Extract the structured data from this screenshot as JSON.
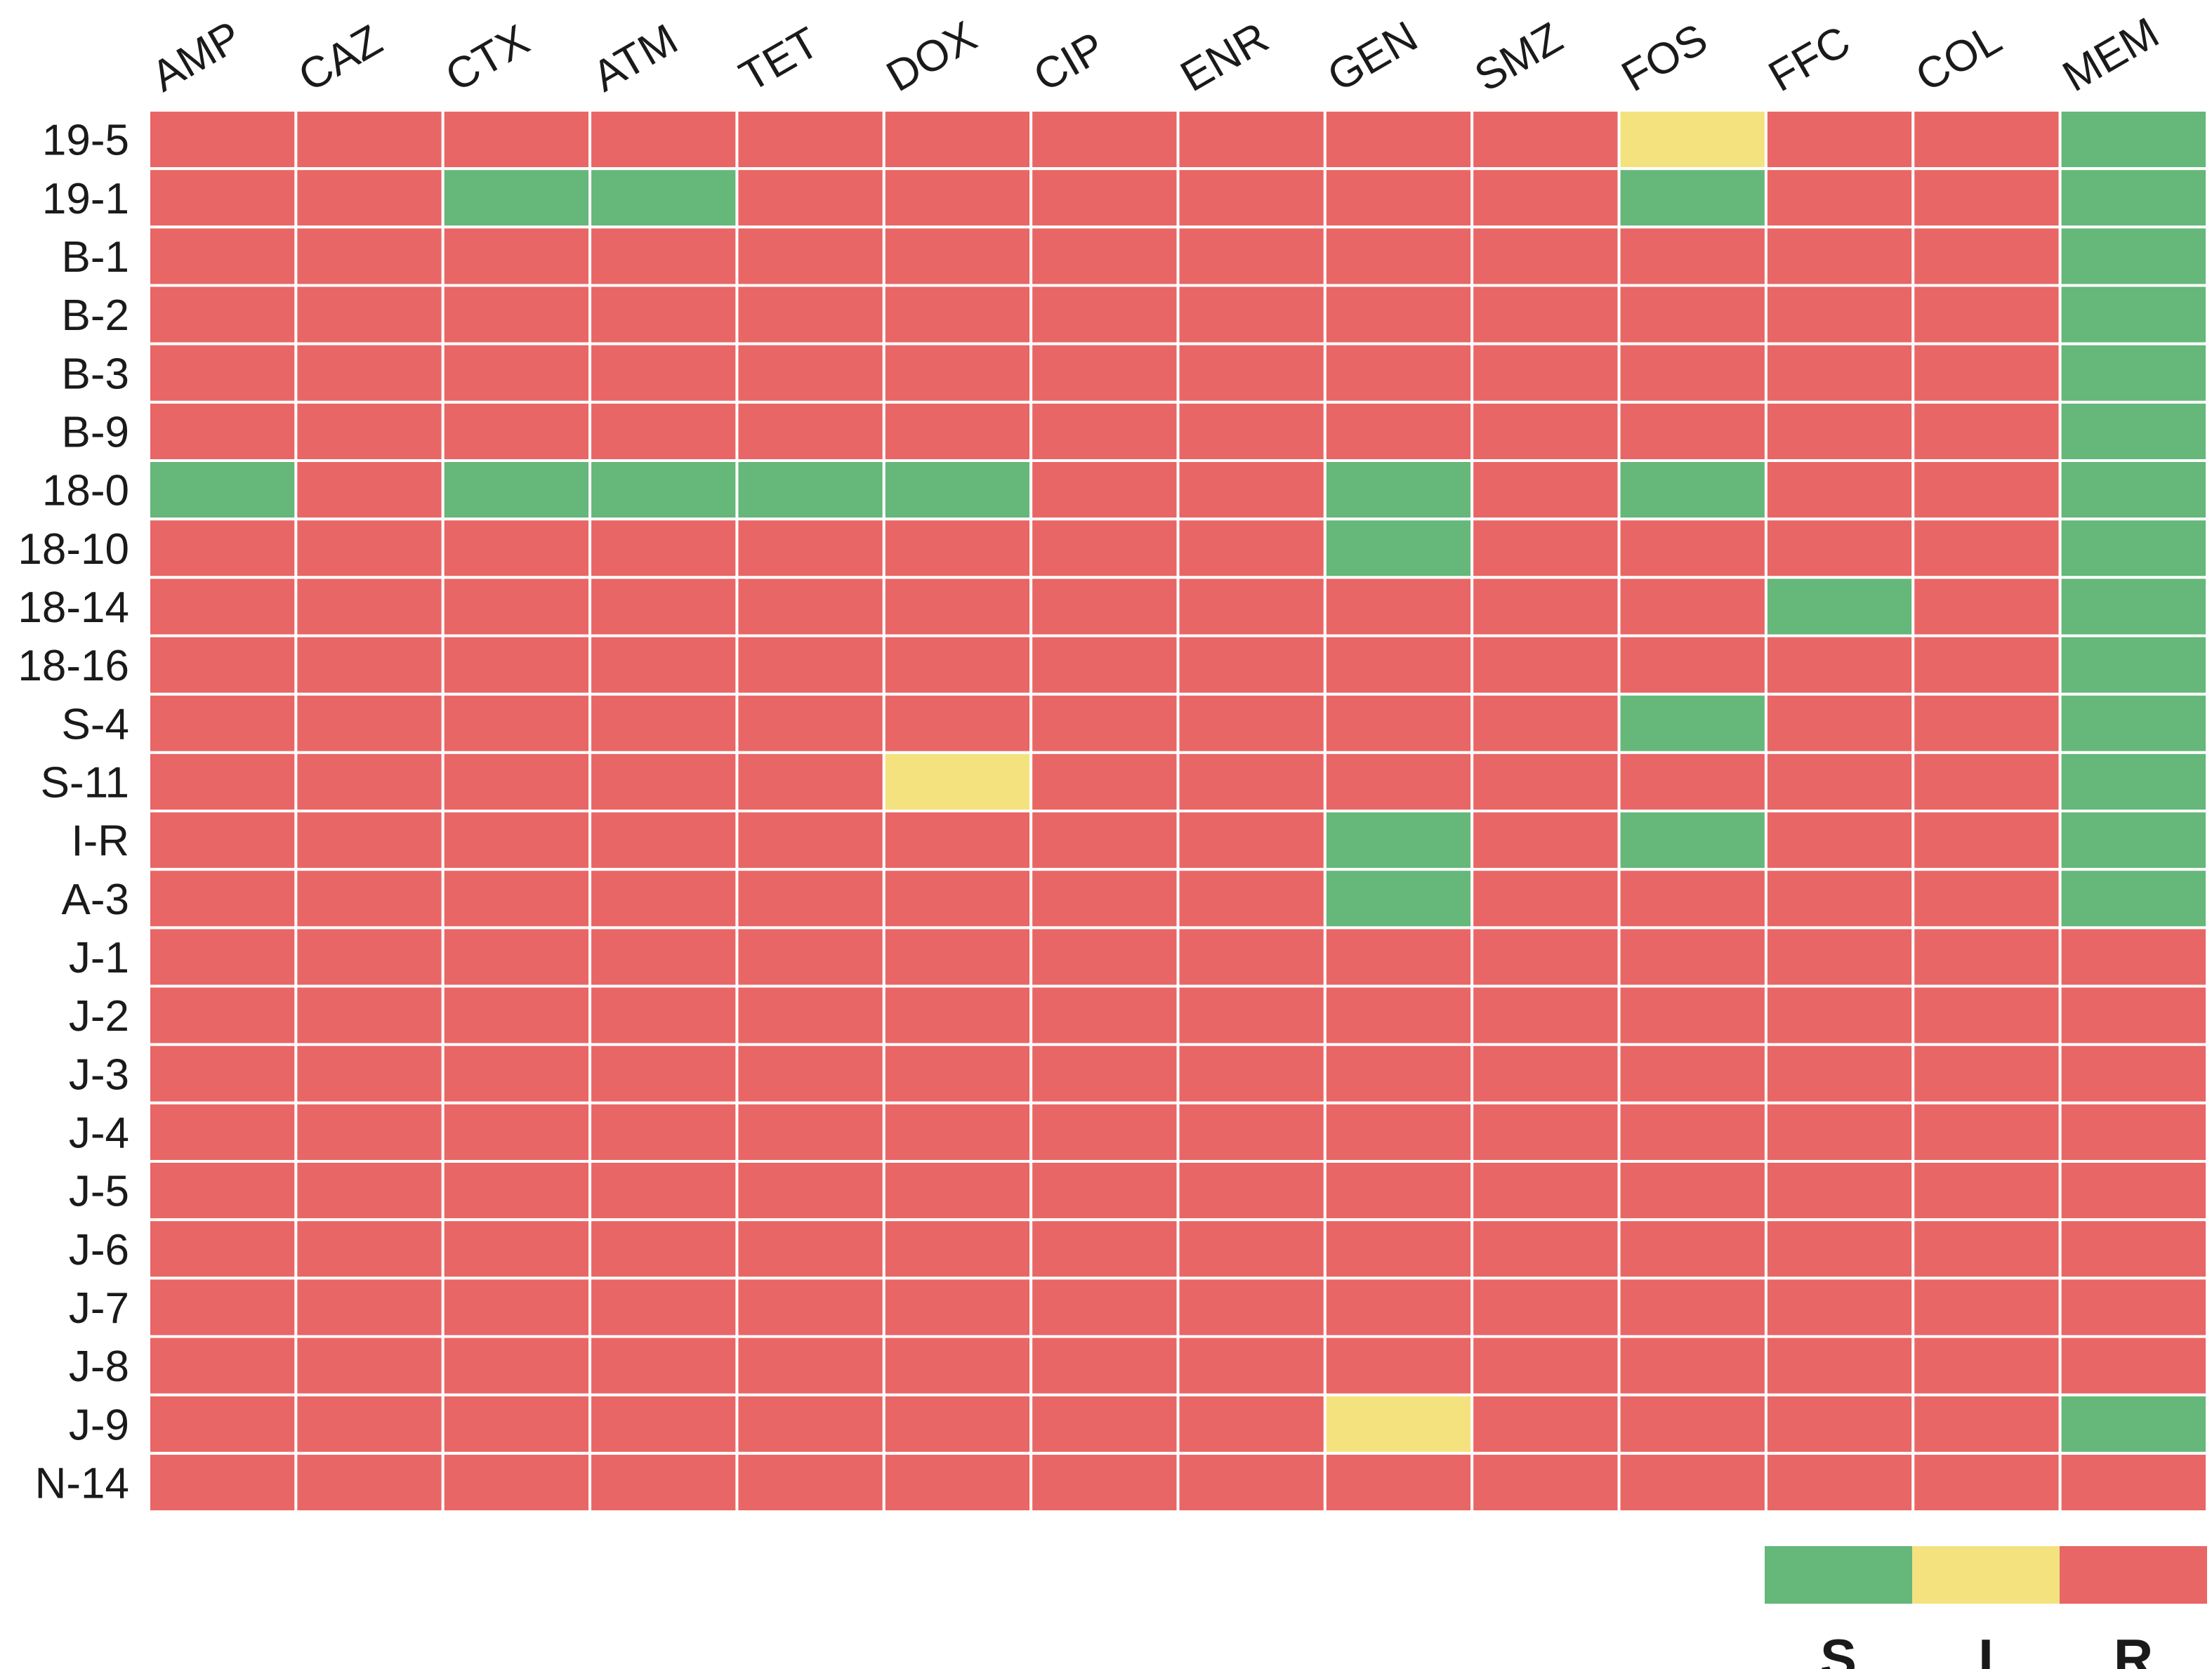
{
  "chart_data": {
    "type": "heatmap",
    "columns": [
      "AMP",
      "CAZ",
      "CTX",
      "ATM",
      "TET",
      "DOX",
      "CIP",
      "ENR",
      "GEN",
      "SMZ",
      "FOS",
      "FFC",
      "COL",
      "MEM"
    ],
    "rows": [
      "19-5",
      "19-1",
      "B-1",
      "B-2",
      "B-3",
      "B-9",
      "18-0",
      "18-10",
      "18-14",
      "18-16",
      "S-4",
      "S-11",
      "I-R",
      "A-3",
      "J-1",
      "J-2",
      "J-3",
      "J-4",
      "J-5",
      "J-6",
      "J-7",
      "J-8",
      "J-9",
      "N-14"
    ],
    "values": [
      [
        "R",
        "R",
        "R",
        "R",
        "R",
        "R",
        "R",
        "R",
        "R",
        "R",
        "I",
        "R",
        "R",
        "S"
      ],
      [
        "R",
        "R",
        "S",
        "S",
        "R",
        "R",
        "R",
        "R",
        "R",
        "R",
        "S",
        "R",
        "R",
        "S"
      ],
      [
        "R",
        "R",
        "R",
        "R",
        "R",
        "R",
        "R",
        "R",
        "R",
        "R",
        "R",
        "R",
        "R",
        "S"
      ],
      [
        "R",
        "R",
        "R",
        "R",
        "R",
        "R",
        "R",
        "R",
        "R",
        "R",
        "R",
        "R",
        "R",
        "S"
      ],
      [
        "R",
        "R",
        "R",
        "R",
        "R",
        "R",
        "R",
        "R",
        "R",
        "R",
        "R",
        "R",
        "R",
        "S"
      ],
      [
        "R",
        "R",
        "R",
        "R",
        "R",
        "R",
        "R",
        "R",
        "R",
        "R",
        "R",
        "R",
        "R",
        "S"
      ],
      [
        "S",
        "R",
        "S",
        "S",
        "S",
        "S",
        "R",
        "R",
        "S",
        "R",
        "S",
        "R",
        "R",
        "S"
      ],
      [
        "R",
        "R",
        "R",
        "R",
        "R",
        "R",
        "R",
        "R",
        "S",
        "R",
        "R",
        "R",
        "R",
        "S"
      ],
      [
        "R",
        "R",
        "R",
        "R",
        "R",
        "R",
        "R",
        "R",
        "R",
        "R",
        "R",
        "S",
        "R",
        "S"
      ],
      [
        "R",
        "R",
        "R",
        "R",
        "R",
        "R",
        "R",
        "R",
        "R",
        "R",
        "R",
        "R",
        "R",
        "S"
      ],
      [
        "R",
        "R",
        "R",
        "R",
        "R",
        "R",
        "R",
        "R",
        "R",
        "R",
        "S",
        "R",
        "R",
        "S"
      ],
      [
        "R",
        "R",
        "R",
        "R",
        "R",
        "I",
        "R",
        "R",
        "R",
        "R",
        "R",
        "R",
        "R",
        "S"
      ],
      [
        "R",
        "R",
        "R",
        "R",
        "R",
        "R",
        "R",
        "R",
        "S",
        "R",
        "S",
        "R",
        "R",
        "S"
      ],
      [
        "R",
        "R",
        "R",
        "R",
        "R",
        "R",
        "R",
        "R",
        "S",
        "R",
        "R",
        "R",
        "R",
        "S"
      ],
      [
        "R",
        "R",
        "R",
        "R",
        "R",
        "R",
        "R",
        "R",
        "R",
        "R",
        "R",
        "R",
        "R",
        "R"
      ],
      [
        "R",
        "R",
        "R",
        "R",
        "R",
        "R",
        "R",
        "R",
        "R",
        "R",
        "R",
        "R",
        "R",
        "R"
      ],
      [
        "R",
        "R",
        "R",
        "R",
        "R",
        "R",
        "R",
        "R",
        "R",
        "R",
        "R",
        "R",
        "R",
        "R"
      ],
      [
        "R",
        "R",
        "R",
        "R",
        "R",
        "R",
        "R",
        "R",
        "R",
        "R",
        "R",
        "R",
        "R",
        "R"
      ],
      [
        "R",
        "R",
        "R",
        "R",
        "R",
        "R",
        "R",
        "R",
        "R",
        "R",
        "R",
        "R",
        "R",
        "R"
      ],
      [
        "R",
        "R",
        "R",
        "R",
        "R",
        "R",
        "R",
        "R",
        "R",
        "R",
        "R",
        "R",
        "R",
        "R"
      ],
      [
        "R",
        "R",
        "R",
        "R",
        "R",
        "R",
        "R",
        "R",
        "R",
        "R",
        "R",
        "R",
        "R",
        "R"
      ],
      [
        "R",
        "R",
        "R",
        "R",
        "R",
        "R",
        "R",
        "R",
        "R",
        "R",
        "R",
        "R",
        "R",
        "R"
      ],
      [
        "R",
        "R",
        "R",
        "R",
        "R",
        "R",
        "R",
        "R",
        "I",
        "R",
        "R",
        "R",
        "R",
        "S"
      ],
      [
        "R",
        "R",
        "R",
        "R",
        "R",
        "R",
        "R",
        "R",
        "R",
        "R",
        "R",
        "R",
        "R",
        "R"
      ]
    ],
    "categories": [
      "S",
      "I",
      "R"
    ],
    "colors": {
      "S": "#65b77a",
      "I": "#f4e27f",
      "R": "#e86665"
    },
    "grid": true,
    "legend": {
      "placement": "bottom-right",
      "entries": [
        "S",
        "I",
        "R"
      ]
    },
    "title": "",
    "xlabel": "",
    "ylabel": ""
  }
}
